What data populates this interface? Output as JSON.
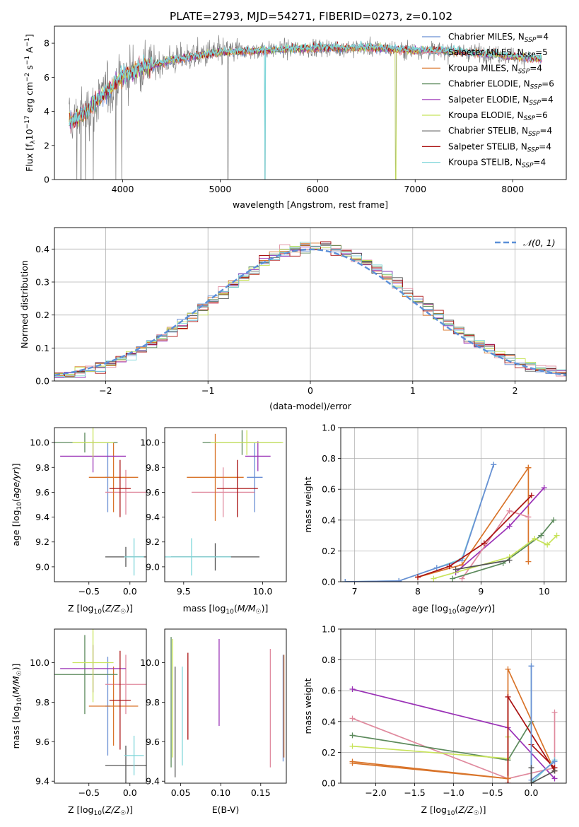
{
  "colors": {
    "c1": "#6a8fd4",
    "c2": "#e08a9e",
    "c3": "#d9742a",
    "c4": "#5c8a5c",
    "c5": "#9b33b7",
    "c6": "#c8e35a",
    "c7": "#555555",
    "c8": "#aa1111",
    "c9": "#7fd6d9",
    "spec": "#808080",
    "norm": "#5b8fd8",
    "grid": "#b0b0b0"
  },
  "chart_data": [
    {
      "id": "spectrum",
      "type": "line",
      "title": "PLATE=2793, MJD=54271, FIBERID=0273, z=0.102",
      "xlabel": "wavelength [Angstrom, rest frame]",
      "ylabel": "Flux [f_λ 10^-17 erg cm^-2 s^-1 A^-1]",
      "xlim": [
        3300,
        8550
      ],
      "ylim": [
        0,
        9
      ],
      "xticks": [
        "4000",
        "5000",
        "6000",
        "7000",
        "8000"
      ],
      "yticks": [
        "0",
        "2",
        "4",
        "6",
        "8"
      ],
      "grid": false,
      "legend_position": "right",
      "continuum": {
        "x": [
          3450,
          3500,
          3600,
          3700,
          3800,
          3900,
          4000,
          4100,
          4200,
          4300,
          4400,
          4500,
          4700,
          4900,
          5100,
          5300,
          5500,
          5700,
          5900,
          6100,
          6300,
          6500,
          6700,
          6900,
          7100,
          7300,
          7500,
          7700,
          7900,
          8100,
          8300
        ],
        "y": [
          3.4,
          3.5,
          3.9,
          4.4,
          5.0,
          5.5,
          6.1,
          6.4,
          6.6,
          6.7,
          6.85,
          7.0,
          7.2,
          7.4,
          7.5,
          7.55,
          7.6,
          7.65,
          7.7,
          7.75,
          7.7,
          7.75,
          7.7,
          7.6,
          7.6,
          7.55,
          7.5,
          7.4,
          7.3,
          7.2,
          7.1
        ]
      },
      "legend": [
        {
          "name": "Chabrier MILES, N_SSP=4",
          "label": "Chabrier MILES, N",
          "sub": "SSP",
          "suffix": "=4",
          "color": "#6a8fd4"
        },
        {
          "name": "Salpeter MILES, N_SSP=5",
          "label": "Salpeter MILES, N",
          "sub": "SSP",
          "suffix": "=5",
          "color": "#e08a9e"
        },
        {
          "name": "Kroupa MILES, N_SSP=4",
          "label": "Kroupa MILES, N",
          "sub": "SSP",
          "suffix": "=4",
          "color": "#d9742a"
        },
        {
          "name": "Chabrier ELODIE, N_SSP=6",
          "label": "Chabrier ELODIE, N",
          "sub": "SSP",
          "suffix": "=6",
          "color": "#5c8a5c"
        },
        {
          "name": "Salpeter ELODIE, N_SSP=4",
          "label": "Salpeter ELODIE, N",
          "sub": "SSP",
          "suffix": "=4",
          "color": "#9b33b7"
        },
        {
          "name": "Kroupa ELODIE, N_SSP=6",
          "label": "Kroupa ELODIE, N",
          "sub": "SSP",
          "suffix": "=6",
          "color": "#c8e35a"
        },
        {
          "name": "Chabrier STELIB, N_SSP=4",
          "label": "Chabrier STELIB, N",
          "sub": "SSP",
          "suffix": "=4",
          "color": "#555555"
        },
        {
          "name": "Salpeter STELIB, N_SSP=4",
          "label": "Salpeter STELIB, N",
          "sub": "SSP",
          "suffix": "=4",
          "color": "#aa1111"
        },
        {
          "name": "Kroupa STELIB, N_SSP=4",
          "label": "Kroupa STELIB, N",
          "sub": "SSP",
          "suffix": "=4",
          "color": "#7fd6d9"
        }
      ]
    },
    {
      "id": "residuals",
      "type": "line",
      "xlabel": "(data-model)/error",
      "ylabel": "Normed distribution",
      "xlim": [
        -2.5,
        2.5
      ],
      "ylim": [
        0,
        0.465
      ],
      "xticks": [
        "−2",
        "−1",
        "0",
        "1",
        "2"
      ],
      "yticks": [
        "0.0",
        "0.1",
        "0.2",
        "0.3",
        "0.4"
      ],
      "grid": true,
      "legend_label": "𝒩(0, 1)",
      "legend_position": "top-right",
      "bin_width": 0.1
    },
    {
      "id": "age-vs-Z",
      "type": "scatter",
      "xlabel": "Z [log10(Z/Z☉)]",
      "ylabel": "age [log10(age/yr)]",
      "xlim": [
        -0.92,
        0.2
      ],
      "ylim": [
        8.88,
        10.12
      ],
      "xticks": [
        "−0.5",
        "0.0"
      ],
      "yticks": [
        "9.0",
        "9.2",
        "9.4",
        "9.6",
        "9.8",
        "10.0"
      ],
      "points": [
        {
          "x": -0.27,
          "y": 9.72,
          "xerr": 0.03,
          "yerr": 0.28,
          "color": "#6a8fd4"
        },
        {
          "x": -0.05,
          "y": 9.6,
          "xerr": 0.25,
          "yerr": 0.18,
          "color": "#e08a9e"
        },
        {
          "x": -0.2,
          "y": 9.72,
          "xerr": 0.3,
          "yerr": 0.28,
          "color": "#d9742a"
        },
        {
          "x": -0.55,
          "y": 10.0,
          "xerr": 0.4,
          "yerr": 0.08,
          "color": "#5c8a5c"
        },
        {
          "x": -0.45,
          "y": 9.89,
          "xerr": 0.4,
          "yerr": 0.13,
          "color": "#9b33b7"
        },
        {
          "x": -0.45,
          "y": 10.0,
          "xerr": 0.25,
          "yerr": 0.12,
          "color": "#c8e35a"
        },
        {
          "x": -0.05,
          "y": 9.08,
          "xerr": 0.25,
          "yerr": 0.08,
          "color": "#555555"
        },
        {
          "x": -0.12,
          "y": 9.63,
          "xerr": 0.13,
          "yerr": 0.23,
          "color": "#aa1111"
        },
        {
          "x": 0.05,
          "y": 9.08,
          "xerr": 0.12,
          "yerr": 0.15,
          "color": "#7fd6d9"
        }
      ]
    },
    {
      "id": "age-vs-mass",
      "type": "scatter",
      "xlabel": "mass [log10(M/M☉)]",
      "ylabel": "",
      "xlim": [
        9.38,
        10.15
      ],
      "ylim": [
        8.88,
        10.12
      ],
      "xticks": [
        "9.5",
        "10.0"
      ],
      "yticks": [
        "9.0",
        "9.2",
        "9.4",
        "9.6",
        "9.8",
        "10.0"
      ],
      "points": [
        {
          "x": 9.95,
          "y": 9.72,
          "xerr": 0.05,
          "yerr": 0.28,
          "color": "#6a8fd4"
        },
        {
          "x": 9.75,
          "y": 9.6,
          "xerr": 0.2,
          "yerr": 0.2,
          "color": "#e08a9e"
        },
        {
          "x": 9.7,
          "y": 9.72,
          "xerr": 0.18,
          "yerr": 0.35,
          "color": "#d9742a"
        },
        {
          "x": 9.87,
          "y": 10.0,
          "xerr": 0.25,
          "yerr": 0.1,
          "color": "#5c8a5c"
        },
        {
          "x": 9.97,
          "y": 9.89,
          "xerr": 0.08,
          "yerr": 0.12,
          "color": "#9b33b7"
        },
        {
          "x": 9.9,
          "y": 10.0,
          "xerr": 0.23,
          "yerr": 0.1,
          "color": "#c8e35a"
        },
        {
          "x": 9.7,
          "y": 9.08,
          "xerr": 0.28,
          "yerr": 0.11,
          "color": "#555555"
        },
        {
          "x": 9.84,
          "y": 9.63,
          "xerr": 0.13,
          "yerr": 0.23,
          "color": "#aa1111"
        },
        {
          "x": 9.55,
          "y": 9.08,
          "xerr": 0.25,
          "yerr": 0.15,
          "color": "#7fd6d9"
        }
      ]
    },
    {
      "id": "weight-vs-age",
      "type": "line",
      "xlabel": "age [log10(age/yr)]",
      "ylabel": "mass weight",
      "xlim": [
        6.78,
        10.35
      ],
      "ylim": [
        0,
        1.0
      ],
      "xticks": [
        "7",
        "8",
        "9",
        "10"
      ],
      "yticks": [
        "0.0",
        "0.2",
        "0.4",
        "0.6",
        "0.8",
        "1.0"
      ],
      "grid": true,
      "series": [
        {
          "color": "#7fd6d9",
          "x": [
            6.85,
            7.7,
            8.3,
            8.7,
            9.2
          ],
          "y": [
            0.0,
            0.005,
            0.09,
            0.15,
            0.76
          ]
        },
        {
          "color": "#6a8fd4",
          "x": [
            6.85,
            7.7,
            8.3,
            8.7,
            9.2
          ],
          "y": [
            0.0,
            0.005,
            0.09,
            0.14,
            0.76
          ]
        },
        {
          "color": "#d9742a",
          "x": [
            8.0,
            8.7,
            9.75
          ],
          "y": [
            0.03,
            0.11,
            0.74
          ]
        },
        {
          "color": "#d9742a",
          "x": [
            9.75,
            9.75
          ],
          "y": [
            0.74,
            0.13
          ]
        },
        {
          "color": "#9b33b7",
          "x": [
            8.6,
            9.45,
            10.0
          ],
          "y": [
            0.06,
            0.36,
            0.61
          ]
        },
        {
          "color": "#e08a9e",
          "x": [
            8.7,
            9.45,
            9.75
          ],
          "y": [
            0.02,
            0.46,
            0.42
          ]
        },
        {
          "color": "#aa1111",
          "x": [
            8.0,
            8.5,
            9.05,
            9.8
          ],
          "y": [
            0.03,
            0.1,
            0.25,
            0.56
          ]
        },
        {
          "color": "#5c8a5c",
          "x": [
            8.55,
            9.35,
            9.95,
            10.15
          ],
          "y": [
            0.02,
            0.12,
            0.3,
            0.4
          ]
        },
        {
          "color": "#c8e35a",
          "x": [
            8.25,
            9.45,
            9.85,
            10.05,
            10.2
          ],
          "y": [
            0.02,
            0.16,
            0.28,
            0.24,
            0.3
          ]
        },
        {
          "color": "#555555",
          "x": [
            8.6,
            9.45
          ],
          "y": [
            0.08,
            0.14
          ]
        }
      ]
    },
    {
      "id": "mass-vs-Z",
      "type": "scatter",
      "xlabel": "Z [log10(Z/Z☉)]",
      "ylabel": "mass [log10(M/M☉)]",
      "xlim": [
        -0.92,
        0.2
      ],
      "ylim": [
        9.39,
        10.17
      ],
      "xticks": [
        "−0.5",
        "0.0"
      ],
      "yticks": [
        "9.4",
        "9.6",
        "9.8",
        "10.0"
      ],
      "points": [
        {
          "x": -0.27,
          "y": 9.78,
          "xerr": 0.03,
          "yerr": 0.25,
          "color": "#6a8fd4"
        },
        {
          "x": -0.05,
          "y": 9.89,
          "xerr": 0.25,
          "yerr": 0.15,
          "color": "#e08a9e"
        },
        {
          "x": -0.2,
          "y": 9.78,
          "xerr": 0.3,
          "yerr": 0.2,
          "color": "#d9742a"
        },
        {
          "x": -0.55,
          "y": 9.94,
          "xerr": 0.4,
          "yerr": 0.2,
          "color": "#5c8a5c"
        },
        {
          "x": -0.45,
          "y": 9.97,
          "xerr": 0.4,
          "yerr": 0.12,
          "color": "#9b33b7"
        },
        {
          "x": -0.45,
          "y": 10.0,
          "xerr": 0.25,
          "yerr": 0.2,
          "color": "#c8e35a"
        },
        {
          "x": -0.05,
          "y": 9.48,
          "xerr": 0.25,
          "yerr": 0.1,
          "color": "#555555"
        },
        {
          "x": -0.12,
          "y": 9.81,
          "xerr": 0.13,
          "yerr": 0.25,
          "color": "#aa1111"
        },
        {
          "x": 0.05,
          "y": 9.53,
          "xerr": 0.12,
          "yerr": 0.1,
          "color": "#7fd6d9"
        }
      ]
    },
    {
      "id": "mass-vs-EBV",
      "type": "scatter",
      "xlabel": "E(B-V)",
      "ylabel": "",
      "xlim": [
        0.03,
        0.182
      ],
      "ylim": [
        9.39,
        10.17
      ],
      "xticks": [
        "0.05",
        "0.10",
        "0.15"
      ],
      "yticks": [
        "9.4",
        "9.6",
        "9.8",
        "10.0"
      ],
      "points": [
        {
          "x": 0.178,
          "y": 9.77,
          "xerr": 0,
          "yerr": 0.27,
          "color": "#6a8fd4"
        },
        {
          "x": 0.162,
          "y": 9.77,
          "xerr": 0,
          "yerr": 0.3,
          "color": "#e08a9e"
        },
        {
          "x": 0.179,
          "y": 9.78,
          "xerr": 0,
          "yerr": 0.26,
          "color": "#d9742a"
        },
        {
          "x": 0.038,
          "y": 9.8,
          "xerr": 0,
          "yerr": 0.33,
          "color": "#5c8a5c"
        },
        {
          "x": 0.098,
          "y": 9.9,
          "xerr": 0,
          "yerr": 0.22,
          "color": "#9b33b7"
        },
        {
          "x": 0.04,
          "y": 9.82,
          "xerr": 0,
          "yerr": 0.3,
          "color": "#c8e35a"
        },
        {
          "x": 0.043,
          "y": 9.7,
          "xerr": 0,
          "yerr": 0.28,
          "color": "#555555"
        },
        {
          "x": 0.059,
          "y": 9.83,
          "xerr": 0,
          "yerr": 0.22,
          "color": "#aa1111"
        },
        {
          "x": 0.052,
          "y": 9.73,
          "xerr": 0,
          "yerr": 0.25,
          "color": "#7fd6d9"
        }
      ]
    },
    {
      "id": "weight-vs-Z",
      "type": "line",
      "xlabel": "Z [log10(Z/Z☉)]",
      "ylabel": "mass weight",
      "xlim": [
        -2.45,
        0.45
      ],
      "ylim": [
        0,
        1.0
      ],
      "xticks": [
        "−2.0",
        "−1.5",
        "−1.0",
        "−0.5",
        "0.0"
      ],
      "yticks": [
        "0.0",
        "0.2",
        "0.4",
        "0.6",
        "0.8",
        "1.0"
      ],
      "grid": true,
      "series": [
        {
          "color": "#9b33b7",
          "x": [
            -2.3,
            -0.3,
            0.3
          ],
          "y": [
            0.61,
            0.36,
            0.03
          ]
        },
        {
          "color": "#e08a9e",
          "x": [
            -2.3,
            -0.3,
            0.3,
            0.3
          ],
          "y": [
            0.42,
            0.03,
            0.1,
            0.46
          ]
        },
        {
          "color": "#5c8a5c",
          "x": [
            -2.3,
            -0.3,
            0.0
          ],
          "y": [
            0.31,
            0.15,
            0.4
          ]
        },
        {
          "color": "#c8e35a",
          "x": [
            -2.3,
            -0.3,
            -0.3
          ],
          "y": [
            0.24,
            0.16,
            0.3
          ]
        },
        {
          "color": "#d9742a",
          "x": [
            -2.3,
            -0.3,
            -0.3,
            0.3
          ],
          "y": [
            0.14,
            0.03,
            0.74,
            0.08
          ]
        },
        {
          "color": "#aa1111",
          "x": [
            -0.3,
            -0.3,
            0.3
          ],
          "y": [
            0.0,
            0.56,
            0.08
          ]
        },
        {
          "color": "#aa1111",
          "x": [
            0.0,
            0.3
          ],
          "y": [
            0.25,
            0.1
          ]
        },
        {
          "color": "#7fd6d9",
          "x": [
            0.0,
            0.0,
            0.3
          ],
          "y": [
            0.76,
            0.0,
            0.15
          ]
        },
        {
          "color": "#6a8fd4",
          "x": [
            0.0,
            0.0,
            0.3
          ],
          "y": [
            0.76,
            0.02,
            0.14
          ]
        },
        {
          "color": "#555555",
          "x": [
            0.0,
            0.0,
            0.3
          ],
          "y": [
            0.1,
            0.0,
            0.08
          ]
        },
        {
          "color": "#d9742a",
          "x": [
            -2.3,
            -0.3
          ],
          "y": [
            0.13,
            0.03
          ]
        }
      ]
    }
  ]
}
